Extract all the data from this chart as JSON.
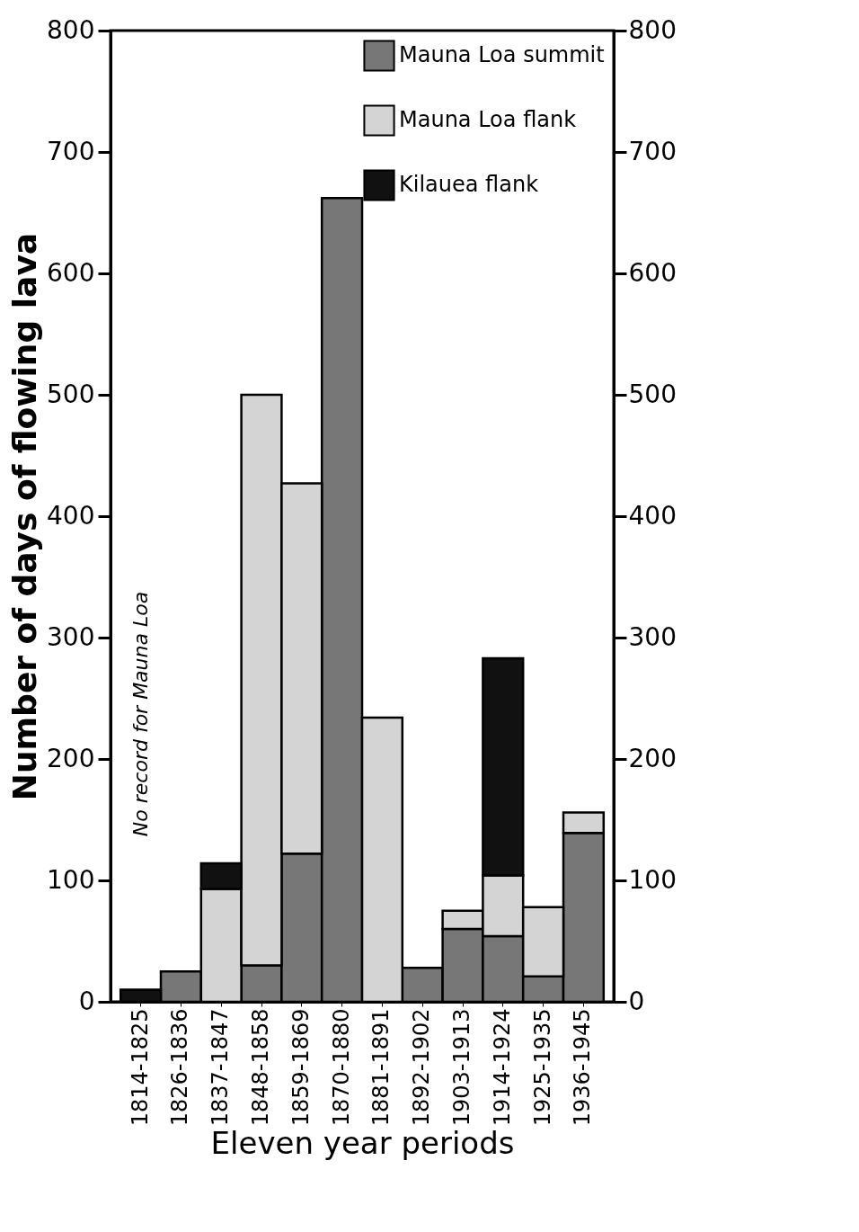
{
  "chart_data": {
    "type": "bar",
    "stacked": true,
    "xlabel": "Eleven year periods",
    "ylabel": "Number of days of flowing lava",
    "categories": [
      "1814-1825",
      "1826-1836",
      "1837-1847",
      "1848-1858",
      "1859-1869",
      "1870-1880",
      "1881-1891",
      "1892-1902",
      "1903-1913",
      "1914-1924",
      "1925-1935",
      "1936-1945"
    ],
    "series": [
      {
        "name": "Mauna Loa summit",
        "color": "#777777",
        "values": [
          0,
          25,
          0,
          30,
          122,
          662,
          0,
          28,
          60,
          54,
          21,
          139
        ]
      },
      {
        "name": "Mauna Loa flank",
        "color": "#d4d4d4",
        "values": [
          0,
          0,
          93,
          470,
          305,
          0,
          234,
          0,
          15,
          50,
          57,
          17
        ]
      },
      {
        "name": "Kilauea flank",
        "color": "#111111",
        "values": [
          10,
          0,
          21,
          0,
          0,
          0,
          0,
          0,
          0,
          179,
          0,
          0
        ]
      }
    ],
    "ylim": [
      0,
      800
    ],
    "yticks": [
      0,
      100,
      200,
      300,
      400,
      500,
      600,
      700,
      800
    ],
    "y2lim": [
      0,
      800
    ],
    "y2ticks": [
      0,
      100,
      200,
      300,
      400,
      500,
      600,
      700,
      800
    ],
    "legend": "top right",
    "grid": false,
    "annotations": [
      "No record for Mauna Loa"
    ]
  }
}
